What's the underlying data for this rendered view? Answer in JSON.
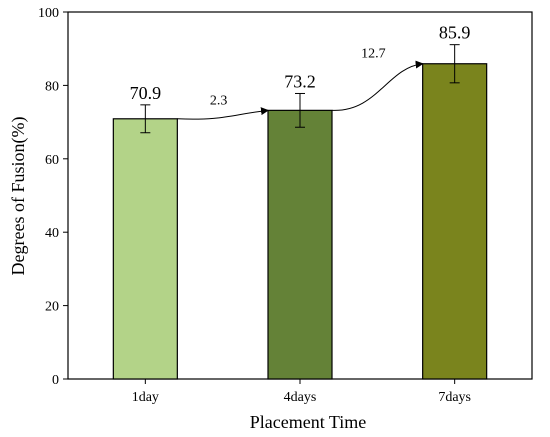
{
  "chart_data": {
    "type": "bar",
    "categories": [
      "1day",
      "4days",
      "7days"
    ],
    "values": [
      70.9,
      73.2,
      85.9
    ],
    "value_labels": [
      "70.9",
      "73.2",
      "85.9"
    ],
    "errors": [
      3.8,
      4.6,
      5.2
    ],
    "colors": [
      "#b3d388",
      "#648237",
      "#7a841d"
    ],
    "xlabel": "Placement Time",
    "ylabel": "Degrees of Fusion(%)",
    "ylim": [
      0,
      100
    ],
    "yticks": [
      0,
      20,
      40,
      60,
      80,
      100
    ],
    "grid": false,
    "annotations": [
      {
        "from": 0,
        "to": 1,
        "label": "2.3"
      },
      {
        "from": 1,
        "to": 2,
        "label": "12.7"
      }
    ]
  }
}
